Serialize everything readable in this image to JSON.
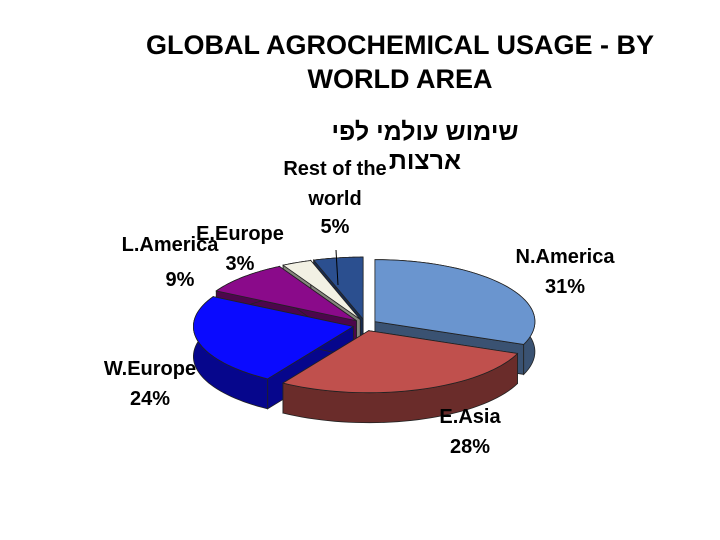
{
  "chart_data": {
    "type": "pie",
    "title": "GLOBAL AGROCHEMICAL USAGE - BY WORLD AREA",
    "subtitle": "שימוש עולמי לפי ארצות",
    "categories": [
      "N.America",
      "E.Asia",
      "W.Europe",
      "L.America",
      "E.Europe",
      "Rest of the world"
    ],
    "values": [
      31,
      28,
      24,
      9,
      3,
      5
    ],
    "value_labels": [
      "31%",
      "28%",
      "24%",
      "9%",
      "3%",
      "5%"
    ],
    "colors": [
      "#6a95cf",
      "#c0504d",
      "#0a0aff",
      "#8a0a8a",
      "#f2f1e4",
      "#2b4f8f"
    ]
  }
}
